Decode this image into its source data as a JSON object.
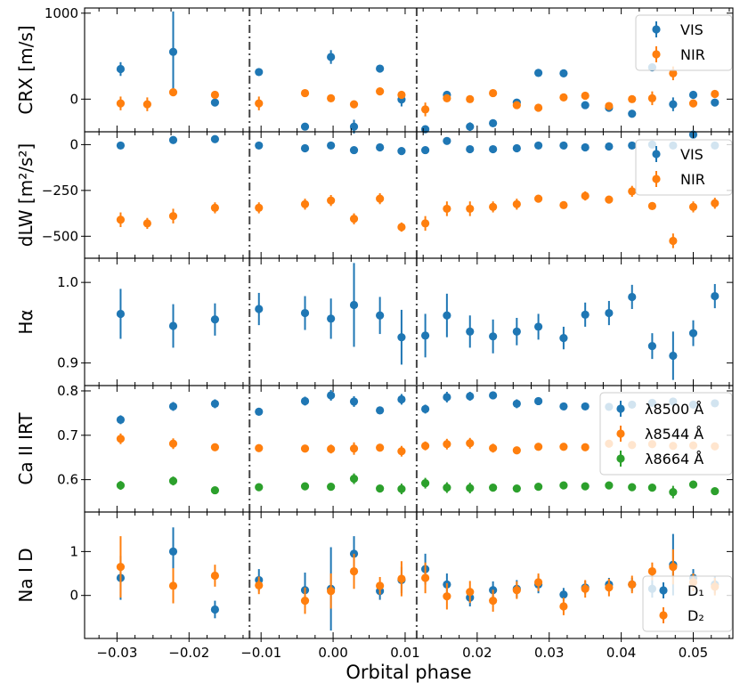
{
  "chart_data": {
    "type": "scatter",
    "xlabel": "Orbital phase",
    "xlim": [
      -0.0345,
      0.0555
    ],
    "x_ticks": [
      -0.03,
      -0.02,
      -0.01,
      0.0,
      0.01,
      0.02,
      0.03,
      0.04,
      0.05
    ],
    "x_tick_labels": [
      "−0.03",
      "−0.02",
      "−0.01",
      "0.00",
      "0.01",
      "0.02",
      "0.03",
      "0.04",
      "0.05"
    ],
    "vlines": [
      -0.0116,
      0.0116
    ],
    "colors": {
      "blue": "#1f77b4",
      "orange": "#ff7f0e",
      "green": "#2ca02c",
      "vline": "#444444"
    },
    "panels": [
      {
        "id": "crx",
        "ylabel": "CRX [m/s]",
        "ylim": [
          -380,
          1060
        ],
        "y_ticks": [
          0,
          1000
        ],
        "y_tick_labels": [
          "0",
          "1000"
        ],
        "legend": "top-right",
        "series": [
          {
            "name": "VIS",
            "color": "blue",
            "x": [
              -0.0295,
              -0.0222,
              -0.0164,
              -0.0103,
              -0.0039,
              -0.0003,
              0.0029,
              0.0065,
              0.0095,
              0.0128,
              0.0158,
              0.019,
              0.0222,
              0.0255,
              0.0285,
              0.032,
              0.035,
              0.0383,
              0.0415,
              0.0443,
              0.0472,
              0.05,
              0.053
            ],
            "y": [
              350,
              550,
              -40,
              315,
              -320,
              490,
              -320,
              355,
              -5,
              -350,
              50,
              -320,
              -280,
              -40,
              305,
              300,
              -70,
              -100,
              -170,
              370,
              -60,
              50,
              -40
            ],
            "err": [
              80,
              470,
              40,
              40,
              40,
              80,
              80,
              40,
              80,
              40,
              40,
              50,
              40,
              40,
              40,
              40,
              40,
              40,
              40,
              40,
              80,
              40,
              40
            ]
          },
          {
            "name": "NIR",
            "color": "orange",
            "x": [
              -0.0295,
              -0.0258,
              -0.0222,
              -0.0164,
              -0.0103,
              -0.0039,
              -0.0003,
              0.0029,
              0.0065,
              0.0095,
              0.0128,
              0.0158,
              0.019,
              0.0222,
              0.0255,
              0.0285,
              0.032,
              0.035,
              0.0383,
              0.0415,
              0.0443,
              0.0472,
              0.05,
              0.053
            ],
            "y": [
              -50,
              -60,
              80,
              50,
              -50,
              70,
              10,
              -60,
              90,
              50,
              -120,
              10,
              0,
              70,
              -70,
              -100,
              20,
              40,
              -80,
              0,
              10,
              300,
              -50,
              60
            ],
            "err": [
              80,
              80,
              40,
              40,
              80,
              40,
              40,
              40,
              40,
              40,
              80,
              40,
              40,
              40,
              40,
              40,
              40,
              40,
              40,
              40,
              80,
              80,
              40,
              40
            ]
          }
        ]
      },
      {
        "id": "dlw",
        "ylabel": "dLW [m²/s²]",
        "ylim": [
          -620,
          70
        ],
        "y_ticks": [
          0,
          -250,
          -500
        ],
        "y_tick_labels": [
          "0",
          "−250",
          "−500"
        ],
        "legend": "top-right",
        "series": [
          {
            "name": "VIS",
            "color": "blue",
            "x": [
              -0.0295,
              -0.0222,
              -0.0164,
              -0.0103,
              -0.0039,
              -0.0003,
              0.0029,
              0.0065,
              0.0095,
              0.0128,
              0.0158,
              0.019,
              0.0222,
              0.0255,
              0.0285,
              0.032,
              0.035,
              0.0383,
              0.0415,
              0.0443,
              0.0472,
              0.05,
              0.053
            ],
            "y": [
              -5,
              25,
              30,
              -5,
              -20,
              -5,
              -30,
              -15,
              -35,
              -30,
              20,
              -25,
              -25,
              -20,
              -5,
              -5,
              -15,
              -10,
              -5,
              0,
              -5,
              55,
              -5
            ],
            "err": [
              15,
              15,
              15,
              15,
              15,
              15,
              15,
              15,
              15,
              15,
              15,
              15,
              15,
              15,
              15,
              15,
              15,
              15,
              15,
              15,
              15,
              15,
              15
            ]
          },
          {
            "name": "NIR",
            "color": "orange",
            "x": [
              -0.0295,
              -0.0258,
              -0.0222,
              -0.0164,
              -0.0103,
              -0.0039,
              -0.0003,
              0.0029,
              0.0065,
              0.0095,
              0.0128,
              0.0158,
              0.019,
              0.0222,
              0.0255,
              0.0285,
              0.032,
              0.035,
              0.0383,
              0.0415,
              0.0443,
              0.0472,
              0.05,
              0.053
            ],
            "y": [
              -410,
              -430,
              -390,
              -345,
              -345,
              -325,
              -305,
              -405,
              -295,
              -450,
              -430,
              -350,
              -350,
              -340,
              -325,
              -295,
              -330,
              -280,
              -300,
              -255,
              -335,
              -525,
              -340,
              -320
            ],
            "err": [
              40,
              30,
              40,
              30,
              30,
              30,
              30,
              30,
              30,
              25,
              40,
              40,
              40,
              30,
              30,
              20,
              20,
              25,
              20,
              30,
              20,
              40,
              30,
              30
            ]
          }
        ]
      },
      {
        "id": "halpha",
        "ylabel": "Hα",
        "ylim": [
          0.872,
          1.03
        ],
        "y_ticks": [
          0.9,
          1.0
        ],
        "y_tick_labels": [
          "0.9",
          "1.0"
        ],
        "legend": "",
        "series": [
          {
            "name": "",
            "color": "blue",
            "x": [
              -0.0295,
              -0.0222,
              -0.0164,
              -0.0103,
              -0.0039,
              -0.0003,
              0.0029,
              0.0065,
              0.0095,
              0.0128,
              0.0158,
              0.019,
              0.0222,
              0.0255,
              0.0285,
              0.032,
              0.035,
              0.0383,
              0.0415,
              0.0443,
              0.0472,
              0.05,
              0.053
            ],
            "y": [
              0.961,
              0.946,
              0.954,
              0.967,
              0.962,
              0.955,
              0.972,
              0.959,
              0.932,
              0.934,
              0.959,
              0.939,
              0.933,
              0.939,
              0.945,
              0.931,
              0.96,
              0.962,
              0.982,
              0.921,
              0.909,
              0.937,
              0.983
            ],
            "err": [
              0.031,
              0.027,
              0.02,
              0.02,
              0.021,
              0.025,
              0.052,
              0.023,
              0.034,
              0.027,
              0.027,
              0.02,
              0.021,
              0.017,
              0.016,
              0.014,
              0.015,
              0.015,
              0.015,
              0.016,
              0.03,
              0.016,
              0.015
            ]
          }
        ]
      },
      {
        "id": "ca-irt",
        "ylabel": "Ca II IRT",
        "ylim": [
          0.527,
          0.812
        ],
        "y_ticks": [
          0.6,
          0.7,
          0.8
        ],
        "y_tick_labels": [
          "0.6",
          "0.7",
          "0.8"
        ],
        "legend": "top-right",
        "series": [
          {
            "name": "λ8500 Å",
            "color": "blue",
            "x": [
              -0.0295,
              -0.0222,
              -0.0164,
              -0.0103,
              -0.0039,
              -0.0003,
              0.0029,
              0.0065,
              0.0095,
              0.0128,
              0.0158,
              0.019,
              0.0222,
              0.0255,
              0.0285,
              0.032,
              0.035,
              0.0383,
              0.0415,
              0.0443,
              0.0472,
              0.05,
              0.053
            ],
            "y": [
              0.735,
              0.765,
              0.771,
              0.753,
              0.777,
              0.79,
              0.776,
              0.756,
              0.781,
              0.759,
              0.786,
              0.788,
              0.79,
              0.771,
              0.777,
              0.765,
              0.765,
              0.764,
              0.769,
              0.773,
              0.776,
              0.769,
              0.772
            ],
            "err": [
              0.01,
              0.01,
              0.01,
              0.008,
              0.01,
              0.012,
              0.012,
              0.008,
              0.012,
              0.01,
              0.012,
              0.01,
              0.008,
              0.01,
              0.008,
              0.008,
              0.008,
              0.008,
              0.008,
              0.008,
              0.008,
              0.008,
              0.008
            ]
          },
          {
            "name": "λ8544 Å",
            "color": "orange",
            "x": [
              -0.0295,
              -0.0222,
              -0.0164,
              -0.0103,
              -0.0039,
              -0.0003,
              0.0029,
              0.0065,
              0.0095,
              0.0128,
              0.0158,
              0.019,
              0.0222,
              0.0255,
              0.0285,
              0.032,
              0.035,
              0.0383,
              0.0415,
              0.0443,
              0.0472,
              0.05,
              0.053
            ],
            "y": [
              0.692,
              0.681,
              0.673,
              0.671,
              0.67,
              0.669,
              0.67,
              0.672,
              0.664,
              0.676,
              0.68,
              0.682,
              0.671,
              0.666,
              0.674,
              0.674,
              0.673,
              0.681,
              0.678,
              0.68,
              0.676,
              0.677,
              0.675
            ],
            "err": [
              0.012,
              0.012,
              0.008,
              0.008,
              0.008,
              0.01,
              0.014,
              0.008,
              0.012,
              0.01,
              0.012,
              0.012,
              0.01,
              0.008,
              0.008,
              0.008,
              0.008,
              0.008,
              0.008,
              0.008,
              0.008,
              0.008,
              0.008
            ]
          },
          {
            "name": "λ8664 Å",
            "color": "green",
            "x": [
              -0.0295,
              -0.0222,
              -0.0164,
              -0.0103,
              -0.0039,
              -0.0003,
              0.0029,
              0.0065,
              0.0095,
              0.0128,
              0.0158,
              0.019,
              0.0222,
              0.0255,
              0.0285,
              0.032,
              0.035,
              0.0383,
              0.0415,
              0.0443,
              0.0472,
              0.05,
              0.053
            ],
            "y": [
              0.587,
              0.597,
              0.576,
              0.583,
              0.585,
              0.584,
              0.602,
              0.58,
              0.579,
              0.592,
              0.582,
              0.581,
              0.582,
              0.58,
              0.584,
              0.587,
              0.585,
              0.587,
              0.583,
              0.582,
              0.572,
              0.589,
              0.574
            ],
            "err": [
              0.01,
              0.01,
              0.008,
              0.008,
              0.008,
              0.008,
              0.012,
              0.008,
              0.012,
              0.012,
              0.012,
              0.012,
              0.008,
              0.008,
              0.008,
              0.008,
              0.008,
              0.008,
              0.008,
              0.008,
              0.014,
              0.008,
              0.008
            ]
          }
        ]
      },
      {
        "id": "nai-d",
        "ylabel": "Na I D",
        "ylim": [
          -0.98,
          1.9
        ],
        "y_ticks": [
          0,
          1
        ],
        "y_tick_labels": [
          "0",
          "1"
        ],
        "legend": "bottom-right",
        "series": [
          {
            "name": "D₁",
            "color": "blue",
            "x": [
              -0.0295,
              -0.0222,
              -0.0164,
              -0.0103,
              -0.0039,
              -0.0003,
              0.0029,
              0.0065,
              0.0095,
              0.0128,
              0.0158,
              0.019,
              0.0222,
              0.0255,
              0.0285,
              0.032,
              0.035,
              0.0383,
              0.0415,
              0.0443,
              0.0472,
              0.05,
              0.053
            ],
            "y": [
              0.4,
              1.0,
              -0.32,
              0.35,
              0.12,
              0.15,
              0.95,
              0.1,
              0.35,
              0.6,
              0.25,
              -0.05,
              0.12,
              0.15,
              0.25,
              0.02,
              0.18,
              0.25,
              0.25,
              0.15,
              0.7,
              0.4,
              0.25
            ],
            "err": [
              0.5,
              0.55,
              0.2,
              0.25,
              0.4,
              0.95,
              0.4,
              0.2,
              0.3,
              0.35,
              0.25,
              0.2,
              0.2,
              0.2,
              0.2,
              0.15,
              0.15,
              0.15,
              0.15,
              0.2,
              0.7,
              0.2,
              0.2
            ]
          },
          {
            "name": "D₂",
            "color": "orange",
            "x": [
              -0.0295,
              -0.0222,
              -0.0164,
              -0.0103,
              -0.0039,
              -0.0003,
              0.0029,
              0.0065,
              0.0095,
              0.0128,
              0.0158,
              0.019,
              0.0222,
              0.0255,
              0.0285,
              0.032,
              0.035,
              0.0383,
              0.0415,
              0.0443,
              0.0472,
              0.05,
              0.053
            ],
            "y": [
              0.65,
              0.22,
              0.45,
              0.23,
              -0.12,
              0.1,
              0.55,
              0.22,
              0.38,
              0.4,
              -0.02,
              0.08,
              -0.12,
              0.12,
              0.3,
              -0.25,
              0.15,
              0.18,
              0.25,
              0.55,
              0.65,
              0.3,
              0.2
            ],
            "err": [
              0.7,
              0.4,
              0.25,
              0.2,
              0.3,
              0.4,
              0.4,
              0.2,
              0.4,
              0.35,
              0.3,
              0.25,
              0.25,
              0.2,
              0.2,
              0.2,
              0.2,
              0.2,
              0.2,
              0.2,
              0.4,
              0.2,
              0.2
            ]
          }
        ]
      }
    ]
  }
}
